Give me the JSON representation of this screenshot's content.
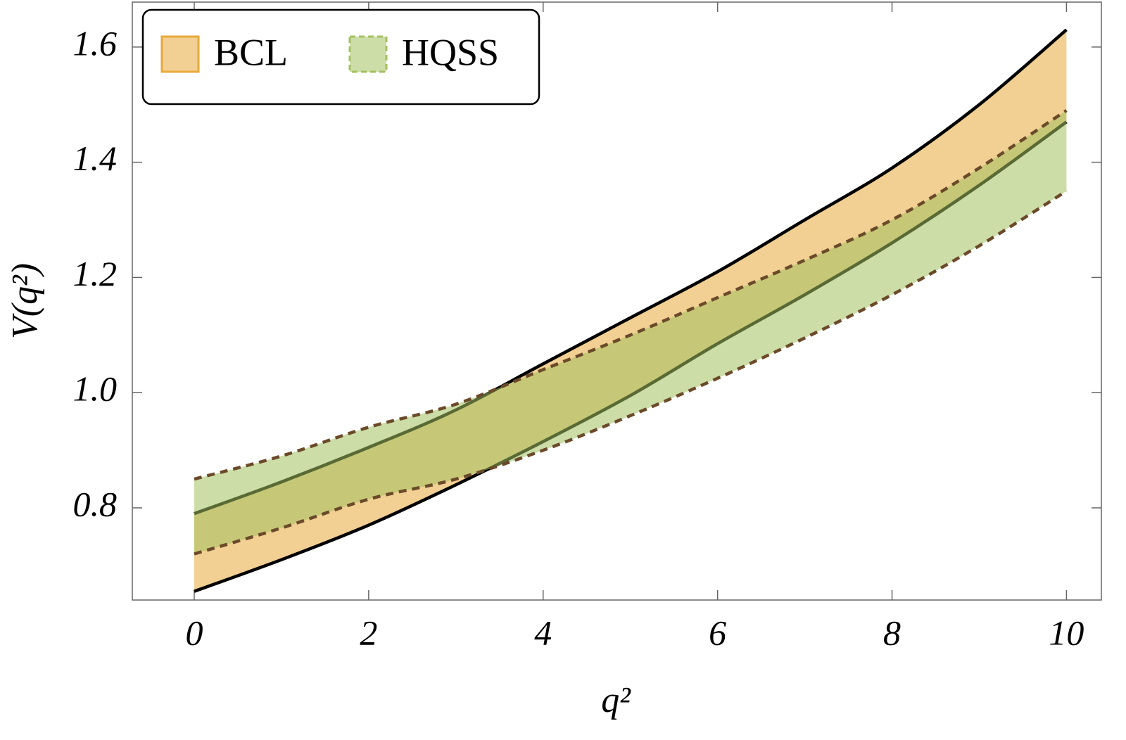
{
  "chart_data": {
    "type": "band",
    "x_label": "q²",
    "y_label": "V(q²)",
    "x": [
      0,
      1,
      2,
      3,
      4,
      5,
      6,
      7,
      8,
      9,
      10
    ],
    "series": [
      {
        "name": "BCL",
        "color": "#e8a93a",
        "line_color": "#000000",
        "dashed": false,
        "lower": [
          0.655,
          0.71,
          0.77,
          0.84,
          0.915,
          0.995,
          1.085,
          1.17,
          1.26,
          1.36,
          1.47
        ],
        "upper": [
          0.79,
          0.845,
          0.905,
          0.97,
          1.05,
          1.13,
          1.21,
          1.3,
          1.39,
          1.5,
          1.63
        ]
      },
      {
        "name": "HQSS",
        "color": "#a3c160",
        "line_color": "#6b4a2a",
        "dashed": true,
        "lower": [
          0.72,
          0.765,
          0.815,
          0.85,
          0.9,
          0.96,
          1.025,
          1.095,
          1.17,
          1.255,
          1.35
        ],
        "upper": [
          0.85,
          0.89,
          0.94,
          0.98,
          1.04,
          1.1,
          1.165,
          1.23,
          1.3,
          1.39,
          1.49
        ]
      }
    ],
    "xlim": [
      -0.71,
      10.4
    ],
    "ylim": [
      0.64,
      1.678
    ],
    "xticks": [
      0,
      2,
      4,
      6,
      8,
      10
    ],
    "yticks": [
      0.8,
      {
        "value": 1,
        "label": "1.0"
      },
      1.2,
      1.4,
      1.6
    ],
    "legend": "upper left"
  }
}
